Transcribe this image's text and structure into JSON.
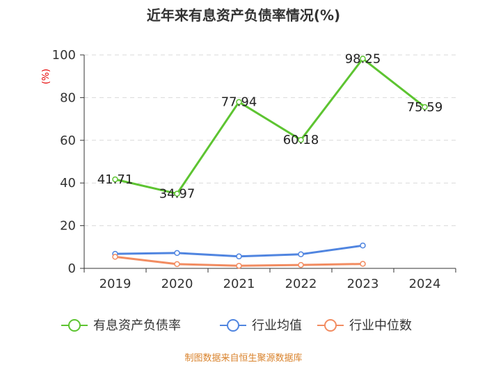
{
  "chart_data": {
    "type": "line",
    "title": "近年来有息资产负债率情况(%)",
    "xlabel": "",
    "ylabel": "(%)",
    "ylim": [
      0,
      100
    ],
    "yticks": [
      0,
      20,
      40,
      60,
      80,
      100
    ],
    "categories": [
      "2019",
      "2020",
      "2021",
      "2022",
      "2023",
      "2024"
    ],
    "grid": true,
    "legend_position": "bottom",
    "series": [
      {
        "name": "有息资产负债率",
        "color": "#5dc431",
        "values": [
          41.71,
          34.97,
          77.94,
          60.18,
          98.25,
          75.59
        ],
        "labels": [
          "41.71",
          "34.97",
          "77.94",
          "60.18",
          "98.25",
          "75.59"
        ]
      },
      {
        "name": "行业均值",
        "color": "#5085e0",
        "values": [
          6.8,
          7.2,
          5.6,
          6.6,
          10.7,
          null
        ],
        "labels": null
      },
      {
        "name": "行业中位数",
        "color": "#f28c61",
        "values": [
          5.4,
          2.0,
          1.2,
          1.6,
          2.1,
          null
        ],
        "labels": null
      }
    ],
    "source": "制图数据来自恒生聚源数据库"
  }
}
